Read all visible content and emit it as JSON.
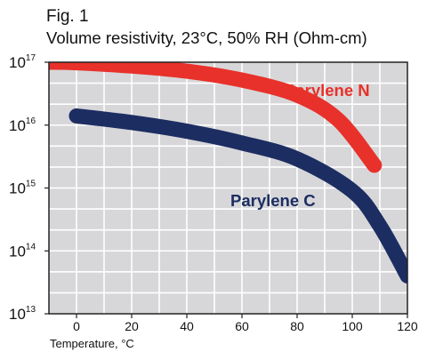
{
  "header": {
    "fig_label": "Fig. 1"
  },
  "chart_data": {
    "type": "line",
    "title": "Volume resistivity, 23°C, 50% RH (Ohm-cm)",
    "xlabel": "Temperature, °C",
    "ylabel": "",
    "xlim": [
      -10,
      120
    ],
    "ylim": [
      10000000000000.0,
      1e+17
    ],
    "yscale": "log",
    "grid": true,
    "x_ticks": [
      0,
      20,
      40,
      60,
      80,
      100,
      120
    ],
    "y_ticks": [
      {
        "base": "10",
        "exp": "13",
        "value": 10000000000000.0
      },
      {
        "base": "10",
        "exp": "14",
        "value": 100000000000000.0
      },
      {
        "base": "10",
        "exp": "15",
        "value": 1000000000000000.0
      },
      {
        "base": "10",
        "exp": "16",
        "value": 1e+16
      },
      {
        "base": "10",
        "exp": "17",
        "value": 1e+17
      }
    ],
    "series": [
      {
        "name": "Parylene N",
        "color": "#e8312a",
        "points": [
          {
            "x": -10,
            "y": 1e+17
          },
          {
            "x": 0,
            "y": 9.8e+16
          },
          {
            "x": 20,
            "y": 8.7e+16
          },
          {
            "x": 40,
            "y": 7.2e+16
          },
          {
            "x": 60,
            "y": 5.2e+16
          },
          {
            "x": 80,
            "y": 3e+16
          },
          {
            "x": 95,
            "y": 1.2e+16
          },
          {
            "x": 108,
            "y": 2300000000000000.0
          }
        ]
      },
      {
        "name": "Parylene C",
        "color": "#1c2d62",
        "points": [
          {
            "x": 0,
            "y": 1.4e+16
          },
          {
            "x": 20,
            "y": 1.1e+16
          },
          {
            "x": 40,
            "y": 8000000000000000.0
          },
          {
            "x": 60,
            "y": 5200000000000000.0
          },
          {
            "x": 80,
            "y": 2900000000000000.0
          },
          {
            "x": 100,
            "y": 900000000000000.0
          },
          {
            "x": 110,
            "y": 250000000000000.0
          },
          {
            "x": 120,
            "y": 40000000000000.0
          }
        ]
      }
    ]
  }
}
